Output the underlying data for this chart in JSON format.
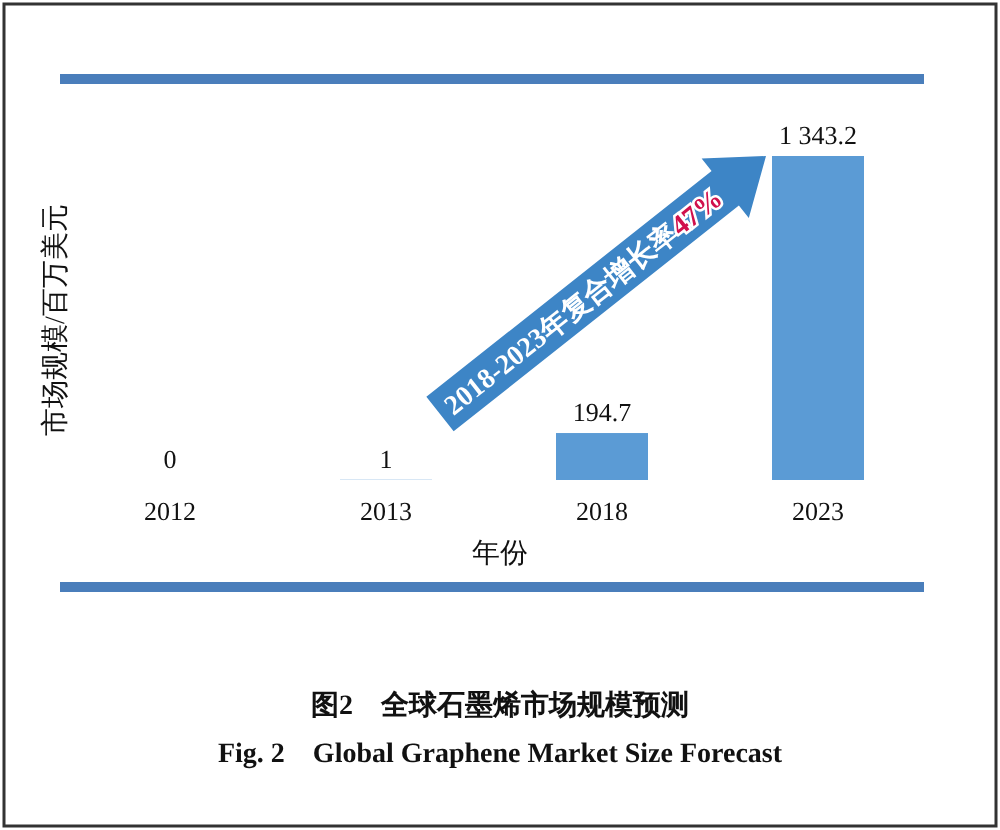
{
  "chart_data": {
    "type": "bar",
    "title": "图2　全球石墨烯市场规模预测",
    "subtitle": "Fig. 2　Global Graphene Market Size Forecast",
    "xlabel": "年份",
    "ylabel": "市场规模/百万美元",
    "categories": [
      "2012",
      "2013",
      "2018",
      "2023"
    ],
    "values": [
      0,
      1,
      194.7,
      1343.2
    ],
    "value_labels": [
      "0",
      "1",
      "194.7",
      "1 343.2"
    ],
    "color": "#5b9bd5",
    "annotations": [
      "2018-2023年复合增长率47%"
    ]
  }
}
